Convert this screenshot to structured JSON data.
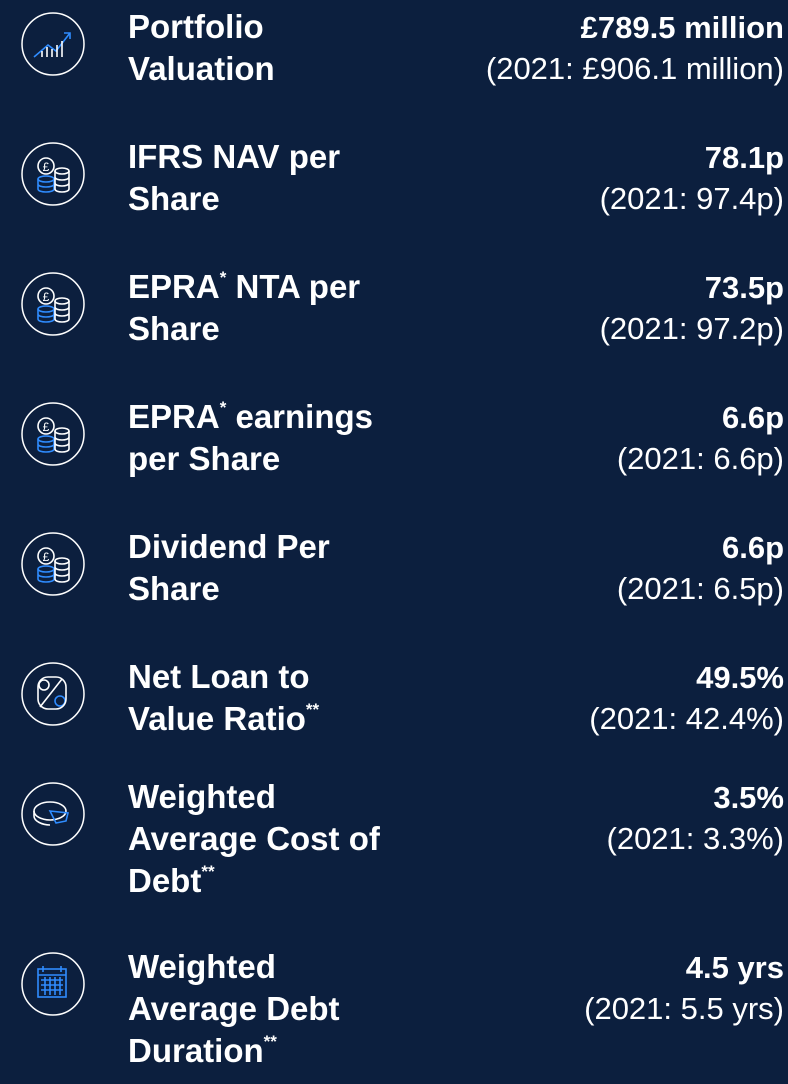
{
  "items": [
    {
      "label": [
        [
          "Portfolio"
        ],
        [
          "Valuation"
        ]
      ],
      "value": "£789.5 million",
      "comparison": "(2021: £906.1 million)"
    },
    {
      "label": [
        [
          "IFRS NAV per"
        ],
        [
          "Share"
        ]
      ],
      "value": "78.1p",
      "comparison": "(2021: 97.4p)"
    },
    {
      "label": [
        [
          "EPRA",
          "*",
          " NTA per"
        ],
        [
          "Share"
        ]
      ],
      "value": "73.5p",
      "comparison": "(2021: 97.2p)"
    },
    {
      "label": [
        [
          "EPRA",
          "*",
          " earnings"
        ],
        [
          "per Share"
        ]
      ],
      "value": "6.6p",
      "comparison": "(2021: 6.6p)"
    },
    {
      "label": [
        [
          "Dividend Per"
        ],
        [
          "Share"
        ]
      ],
      "value": "6.6p",
      "comparison": "(2021: 6.5p)"
    },
    {
      "label": [
        [
          "Net Loan to"
        ],
        [
          "Value Ratio",
          "**"
        ]
      ],
      "value": "49.5%",
      "comparison": "(2021: 42.4%)"
    },
    {
      "label": [
        [
          "Weighted"
        ],
        [
          "Average Cost of"
        ],
        [
          "Debt",
          "**"
        ]
      ],
      "value": "3.5%",
      "comparison": "(2021: 3.3%)"
    },
    {
      "label": [
        [
          "Weighted"
        ],
        [
          "Average Debt"
        ],
        [
          "Duration",
          "**"
        ]
      ],
      "value": "4.5 yrs",
      "comparison": "(2021: 5.5 yrs)"
    }
  ]
}
